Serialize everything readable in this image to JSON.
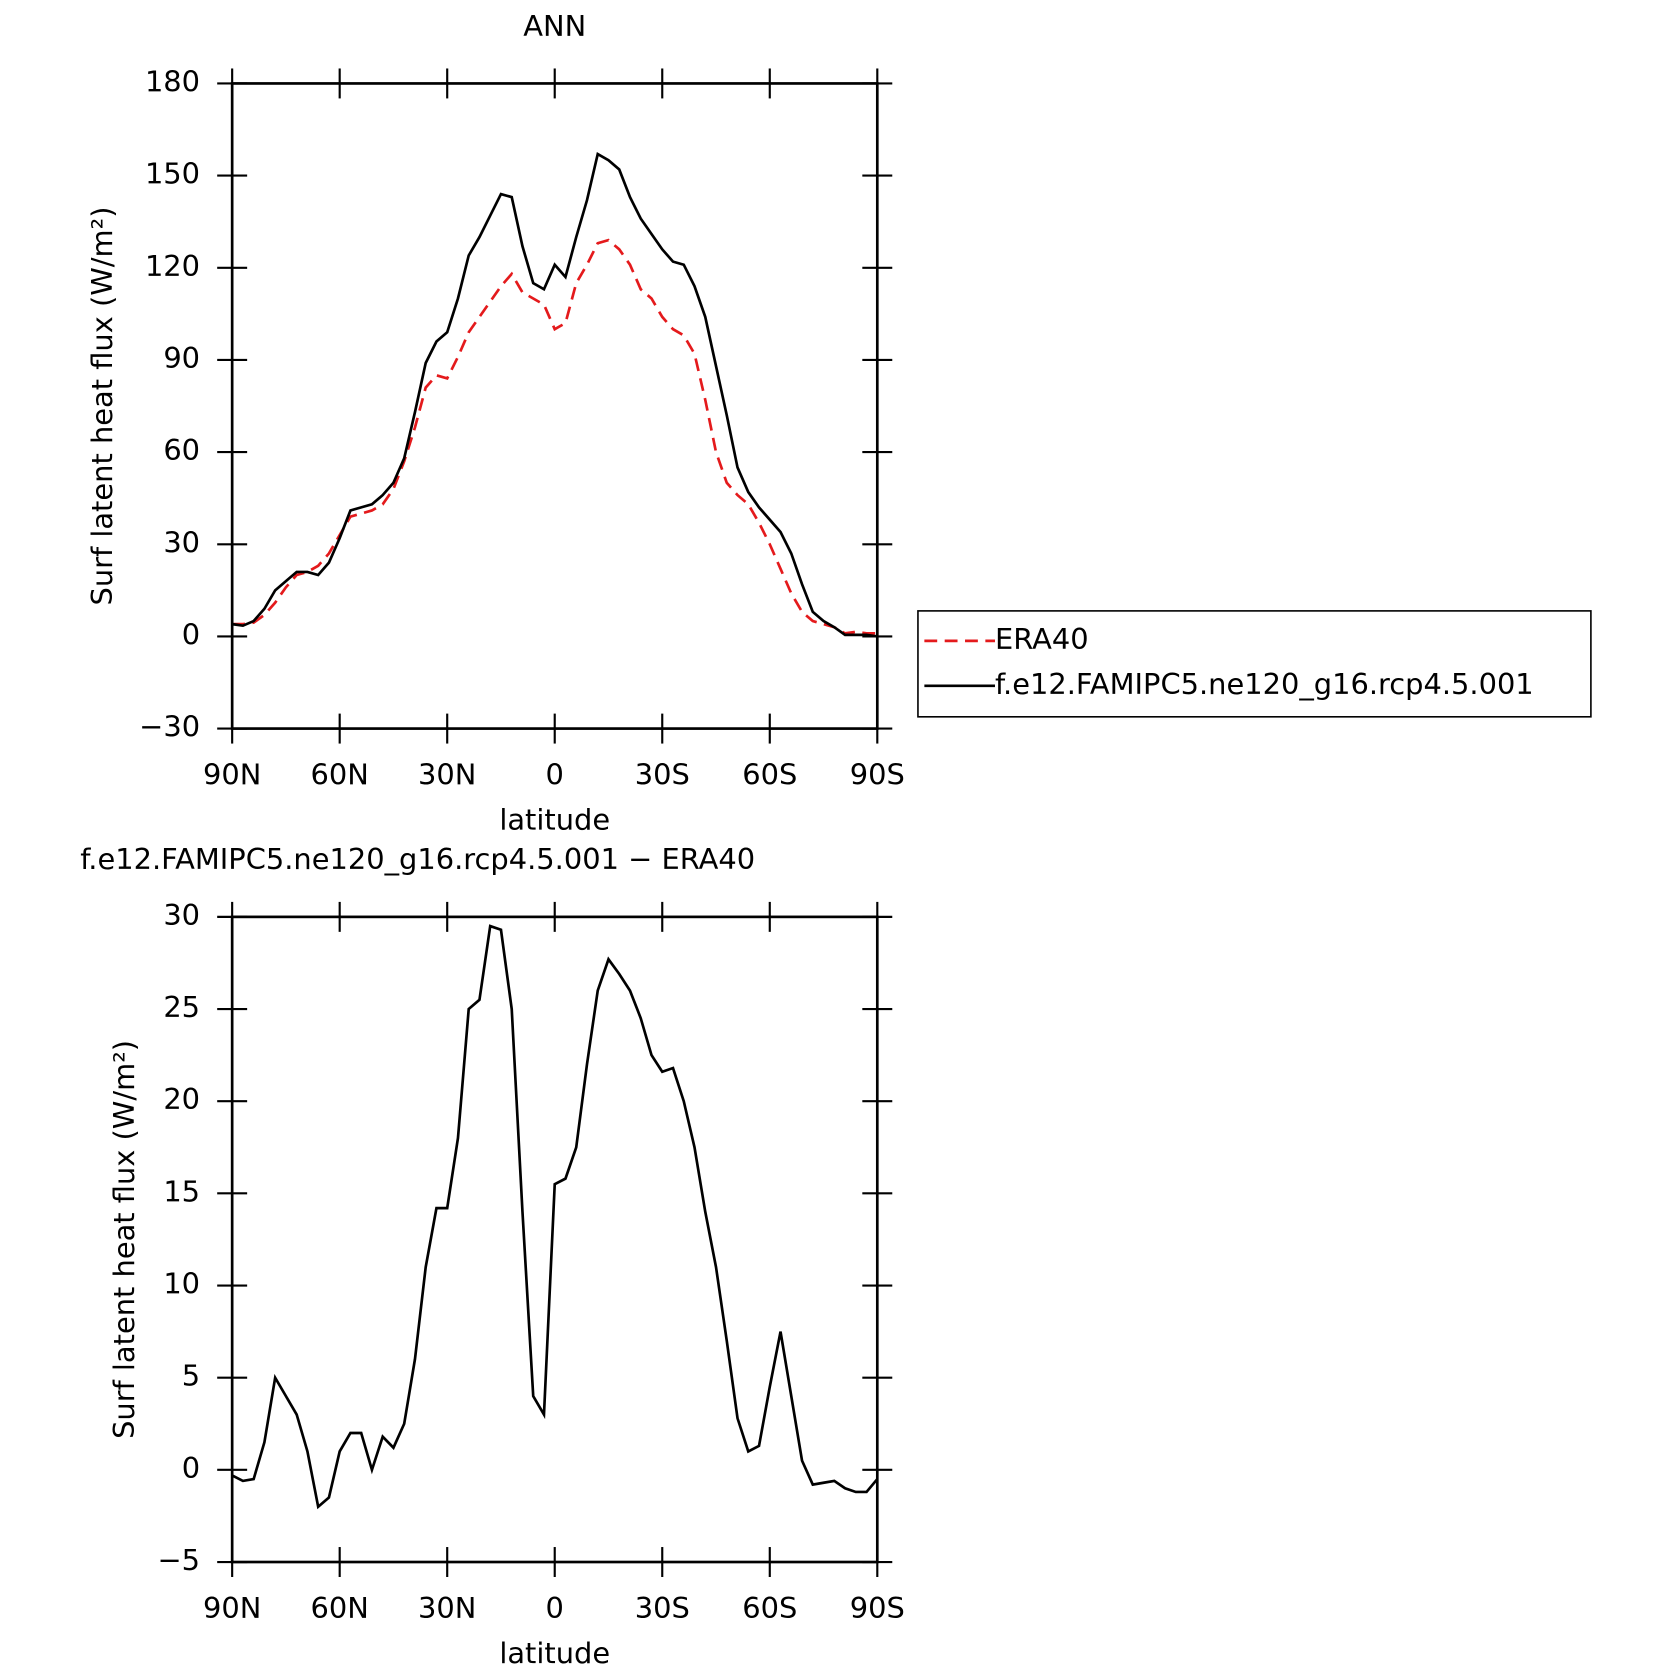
{
  "chart_data": [
    {
      "type": "line",
      "title": "ANN",
      "xlabel": "latitude",
      "ylabel": "Surf latent heat flux (W/m²)",
      "xlim": [
        90,
        -90
      ],
      "xticks": [
        {
          "value": 90,
          "label": "90N"
        },
        {
          "value": 60,
          "label": "60N"
        },
        {
          "value": 30,
          "label": "30N"
        },
        0,
        {
          "value": -30,
          "label": "30S"
        },
        {
          "value": -60,
          "label": "60S"
        },
        {
          "value": -90,
          "label": "90S"
        }
      ],
      "ylim": [
        -30,
        180
      ],
      "yticks": [
        {
          "value": -30,
          "label": "−30"
        },
        0,
        30,
        60,
        90,
        120,
        150,
        180
      ],
      "legend": "right",
      "x": [
        90,
        87,
        84,
        81,
        78,
        75,
        72,
        69,
        66,
        63,
        60,
        57,
        54,
        51,
        48,
        45,
        42,
        39,
        36,
        33,
        30,
        27,
        24,
        21,
        18,
        15,
        12,
        9,
        6,
        3,
        0,
        -3,
        -6,
        -9,
        -12,
        -15,
        -18,
        -21,
        -24,
        -27,
        -30,
        -33,
        -36,
        -39,
        -42,
        -45,
        -48,
        -51,
        -54,
        -57,
        -60,
        -63,
        -66,
        -69,
        -72,
        -75,
        -78,
        -81,
        -84,
        -87,
        -90
      ],
      "series": [
        {
          "name": "ERA40",
          "color": "#e41a1c",
          "dashed": true,
          "values": [
            4,
            4,
            4.5,
            7,
            11,
            16,
            20,
            21,
            23,
            27,
            33,
            39,
            40,
            41,
            43,
            48,
            57,
            68,
            81,
            85,
            84,
            91,
            99,
            104,
            109,
            114,
            118,
            112,
            110,
            108,
            100,
            102,
            115,
            121,
            128,
            129,
            126,
            121,
            113,
            110,
            104,
            100,
            98,
            92,
            77,
            60,
            50,
            46,
            43,
            37,
            30,
            22,
            14,
            8,
            5,
            4,
            3,
            1,
            1.5,
            1,
            1
          ]
        },
        {
          "name": "f.e12.FAMIPC5.ne120_g16.rcp4.5.001",
          "color": "#000000",
          "dashed": false,
          "values": [
            4,
            3.5,
            5,
            9,
            15,
            18,
            21,
            21,
            20,
            24,
            32,
            41,
            42,
            43,
            46,
            50,
            58,
            73,
            89,
            96,
            99,
            110,
            124,
            130,
            137,
            144,
            143,
            127,
            115,
            113,
            121,
            117,
            130,
            142,
            157,
            155,
            152,
            143,
            136,
            131,
            126,
            122,
            121,
            114,
            104,
            88,
            72,
            55,
            47,
            42,
            38,
            34,
            27,
            17,
            8,
            5,
            3,
            0.5,
            0.5,
            0.5,
            0
          ]
        }
      ]
    },
    {
      "type": "line",
      "title": "f.e12.FAMIPC5.ne120_g16.rcp4.5.001 − ERA40",
      "xlabel": "latitude",
      "ylabel": "Surf latent heat flux (W/m²)",
      "xlim": [
        90,
        -90
      ],
      "xticks": [
        {
          "value": 90,
          "label": "90N"
        },
        {
          "value": 60,
          "label": "60N"
        },
        {
          "value": 30,
          "label": "30N"
        },
        0,
        {
          "value": -30,
          "label": "30S"
        },
        {
          "value": -60,
          "label": "60S"
        },
        {
          "value": -90,
          "label": "90S"
        }
      ],
      "ylim": [
        -5,
        30
      ],
      "yticks": [
        {
          "value": -5,
          "label": "−5"
        },
        0,
        5,
        10,
        15,
        20,
        25,
        30
      ],
      "x": [
        90,
        87,
        84,
        81,
        78,
        75,
        72,
        69,
        66,
        63,
        60,
        57,
        54,
        51,
        48,
        45,
        42,
        39,
        36,
        33,
        30,
        27,
        24,
        21,
        18,
        15,
        12,
        9,
        6,
        3,
        0,
        -3,
        -6,
        -9,
        -12,
        -15,
        -18,
        -21,
        -24,
        -27,
        -30,
        -33,
        -36,
        -39,
        -42,
        -45,
        -48,
        -51,
        -54,
        -57,
        -60,
        -63,
        -66,
        -69,
        -72,
        -75,
        -78,
        -81,
        -84,
        -87,
        -90
      ],
      "series": [
        {
          "color": "#000000",
          "dashed": false,
          "values": [
            -0.3,
            -0.6,
            -0.5,
            1.5,
            5,
            4,
            3,
            1,
            -2,
            -1.5,
            1,
            2,
            2,
            0,
            1.8,
            1.2,
            2.5,
            6,
            11,
            14.2,
            14.2,
            18,
            25,
            25.5,
            29.5,
            29.3,
            25,
            14,
            4,
            3,
            15.5,
            15.8,
            17.5,
            22,
            26,
            27.7,
            26.9,
            26,
            24.5,
            22.5,
            21.6,
            21.8,
            20,
            17.5,
            14,
            11,
            7,
            2.8,
            1,
            1.3,
            4.5,
            7.5,
            4,
            0.5,
            -0.8,
            -0.7,
            -0.6,
            -1,
            -1.2,
            -1.2,
            -0.5
          ]
        }
      ]
    }
  ]
}
